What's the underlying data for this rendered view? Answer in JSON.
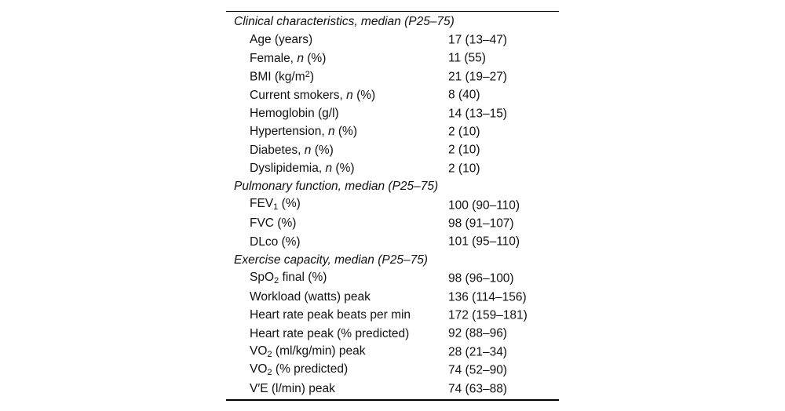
{
  "page": {
    "background": "#ffffff",
    "text_color": "#111111",
    "rule_color": "#000000"
  },
  "table": {
    "sections": [
      {
        "header": "Clinical characteristics, median (P25–75)",
        "rows": [
          {
            "label": [
              {
                "text": "Age (years)"
              }
            ],
            "value": "17 (13–47)"
          },
          {
            "label": [
              {
                "text": "Female, "
              },
              {
                "text": "n",
                "style": "i"
              },
              {
                "text": " (%)"
              }
            ],
            "value": "11 (55)"
          },
          {
            "label": [
              {
                "text": "BMI (kg/m"
              },
              {
                "text": "2",
                "style": "sup"
              },
              {
                "text": ")"
              }
            ],
            "value": "21 (19–27)"
          },
          {
            "label": [
              {
                "text": "Current smokers, "
              },
              {
                "text": "n",
                "style": "i"
              },
              {
                "text": " (%)"
              }
            ],
            "value": "8 (40)"
          },
          {
            "label": [
              {
                "text": "Hemoglobin (g/l)"
              }
            ],
            "value": "14 (13–15)"
          },
          {
            "label": [
              {
                "text": "Hypertension, "
              },
              {
                "text": "n",
                "style": "i"
              },
              {
                "text": " (%)"
              }
            ],
            "value": "2 (10)"
          },
          {
            "label": [
              {
                "text": "Diabetes, "
              },
              {
                "text": "n",
                "style": "i"
              },
              {
                "text": " (%)"
              }
            ],
            "value": "2 (10)"
          },
          {
            "label": [
              {
                "text": "Dyslipidemia, "
              },
              {
                "text": "n",
                "style": "i"
              },
              {
                "text": " (%)"
              }
            ],
            "value": "2 (10)"
          }
        ]
      },
      {
        "header": "Pulmonary function, median (P25–75)",
        "rows": [
          {
            "label": [
              {
                "text": "FEV"
              },
              {
                "text": "1",
                "style": "sub"
              },
              {
                "text": " (%)"
              }
            ],
            "value": "100 (90–110)"
          },
          {
            "label": [
              {
                "text": "FVC (%)"
              }
            ],
            "value": "98 (91–107)"
          },
          {
            "label": [
              {
                "text": "DLco (%)"
              }
            ],
            "value": "101 (95–110)"
          }
        ]
      },
      {
        "header": "Exercise capacity, median (P25–75)",
        "rows": [
          {
            "label": [
              {
                "text": "SpO"
              },
              {
                "text": "2",
                "style": "sub"
              },
              {
                "text": " final (%)"
              }
            ],
            "value": "98 (96–100)"
          },
          {
            "label": [
              {
                "text": "Workload (watts) peak"
              }
            ],
            "value": "136 (114–156)"
          },
          {
            "label": [
              {
                "text": "Heart rate peak beats per min"
              }
            ],
            "value": "172 (159–181)"
          },
          {
            "label": [
              {
                "text": "Heart rate peak (% predicted)"
              }
            ],
            "value": "92 (88–96)"
          },
          {
            "label": [
              {
                "text": "VO"
              },
              {
                "text": "2",
                "style": "sub"
              },
              {
                "text": " (ml/kg/min) peak"
              }
            ],
            "value": "28 (21–34)"
          },
          {
            "label": [
              {
                "text": "VO"
              },
              {
                "text": "2",
                "style": "sub"
              },
              {
                "text": " (% predicted)"
              }
            ],
            "value": "74 (52–90)"
          },
          {
            "label": [
              {
                "text": "V′E (l/min) peak"
              }
            ],
            "value": "74 (63–88)"
          }
        ]
      }
    ]
  }
}
